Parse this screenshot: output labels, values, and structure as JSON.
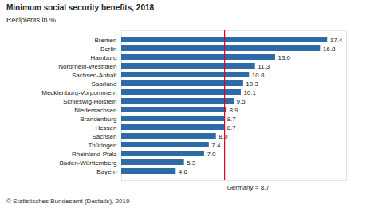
{
  "chart_data": {
    "type": "bar",
    "orientation": "horizontal",
    "title": "Minimum social security benefits, 2018",
    "subtitle": "Recipients in %",
    "source": "© Statistisches Bundesamt (Destatis), 2019",
    "categories": [
      "Bremen",
      "Berlin",
      "Hamburg",
      "Nordrhein-Westfalen",
      "Sachsen-Anhalt",
      "Saarland",
      "Mecklenburg-Vorpommern",
      "Schleswig-Holstein",
      "Niedersachsen",
      "Brandenburg",
      "Hessen",
      "Sachsen",
      "Thüringen",
      "Rheinland-Pfalz",
      "Baden-Württemberg",
      "Bayern"
    ],
    "values": [
      17.4,
      16.8,
      13.0,
      11.3,
      10.8,
      10.3,
      10.1,
      9.5,
      8.9,
      8.7,
      8.7,
      8.0,
      7.4,
      7.0,
      5.3,
      4.6
    ],
    "value_labels": [
      "17.4",
      "16.8",
      "13.0",
      "11.3",
      "10.8",
      "10.3",
      "10.1",
      "9.5",
      "8.9",
      "8.7",
      "8.7",
      "8.0",
      "7.4",
      "7.0",
      "5.3",
      "4.6"
    ],
    "color": "#2f6aa8",
    "xlim": [
      0,
      19
    ],
    "data_labels": true,
    "tick_labels": "y",
    "grid": false,
    "annotations": [
      {
        "text": "Germany = 8.7",
        "value": 8.7,
        "color": "#e2001a"
      }
    ]
  }
}
